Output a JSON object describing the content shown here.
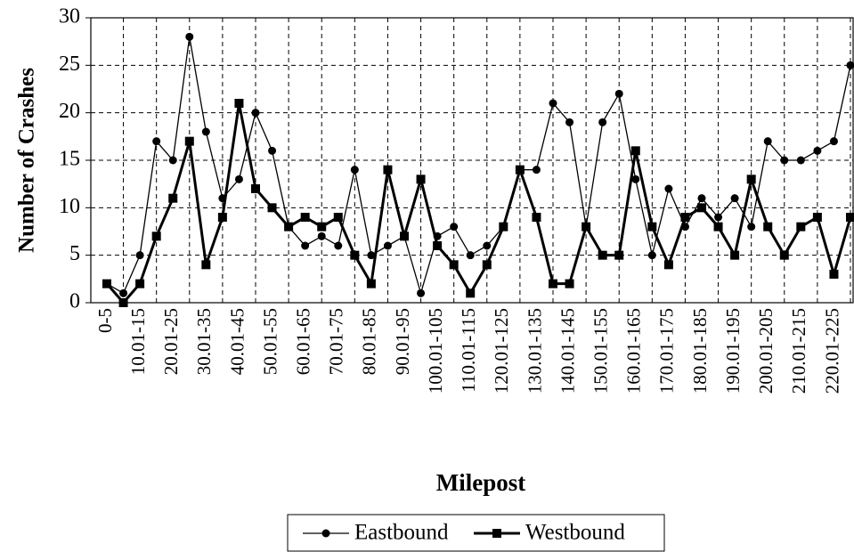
{
  "chart_data": {
    "type": "line",
    "xlabel": "Milepost",
    "ylabel": "Number of Crashes",
    "categories": [
      "0-5",
      null,
      "10.01-15",
      null,
      "20.01-25",
      null,
      "30.01-35",
      null,
      "40.01-45",
      null,
      "50.01-55",
      null,
      "60.01-65",
      null,
      "70.01-75",
      null,
      "80.01-85",
      null,
      "90.01-95",
      null,
      "100.01-105",
      null,
      "110.01-115",
      null,
      "120.01-125",
      null,
      "130.01-135",
      null,
      "140.01-145",
      null,
      "150.01-155",
      null,
      "160.01-165",
      null,
      "170.01-175",
      null,
      "180.01-185",
      null,
      "190.01-195",
      null,
      "200.01-205",
      null,
      "210.01-215",
      null,
      "220.01-225",
      null
    ],
    "series": [
      {
        "name": "Eastbound",
        "color": "#000000",
        "marker": "circle",
        "values": [
          2,
          1,
          5,
          17,
          15,
          28,
          18,
          11,
          13,
          20,
          16,
          8,
          6,
          7,
          6,
          14,
          5,
          6,
          7,
          1,
          7,
          8,
          5,
          6,
          8,
          14,
          14,
          21,
          19,
          8,
          19,
          22,
          13,
          5,
          12,
          8,
          11,
          9,
          11,
          8,
          17,
          15,
          15,
          16,
          17,
          25
        ]
      },
      {
        "name": "Westbound",
        "color": "#000000",
        "marker": "square",
        "values": [
          2,
          0,
          2,
          7,
          11,
          17,
          4,
          9,
          21,
          12,
          10,
          8,
          9,
          8,
          9,
          5,
          2,
          14,
          7,
          13,
          6,
          4,
          1,
          4,
          8,
          14,
          9,
          2,
          2,
          8,
          5,
          5,
          16,
          8,
          4,
          9,
          10,
          8,
          5,
          13,
          8,
          5,
          8,
          9,
          3,
          9
        ]
      }
    ],
    "ylim": [
      0,
      30
    ],
    "yticks": [
      0,
      5,
      10,
      15,
      20,
      25,
      30
    ],
    "grid": true,
    "legend": "bottom"
  }
}
